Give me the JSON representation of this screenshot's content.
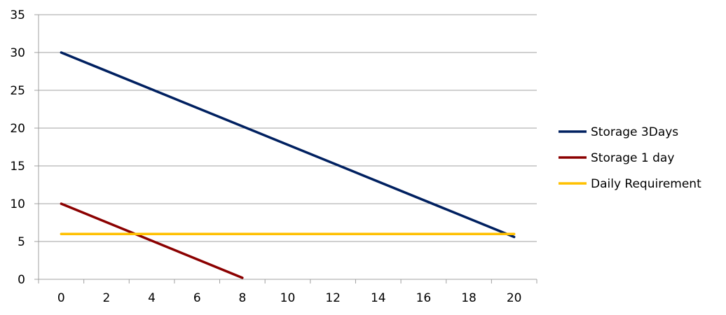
{
  "chart_data": {
    "type": "line",
    "title": "",
    "xlabel": "",
    "ylabel": "",
    "xlim": [
      -1,
      21
    ],
    "ylim": [
      0,
      35
    ],
    "x_ticks": [
      0,
      2,
      4,
      6,
      8,
      10,
      12,
      14,
      16,
      18,
      20
    ],
    "y_ticks": [
      0,
      5,
      10,
      15,
      20,
      25,
      30,
      35
    ],
    "grid": {
      "horizontal": true,
      "vertical": false
    },
    "legend_position": "right",
    "series": [
      {
        "name": "Storage 3Days",
        "color": "#002060",
        "points": [
          [
            0,
            30
          ],
          [
            20,
            5.6
          ]
        ]
      },
      {
        "name": "Storage 1 day",
        "color": "#8b0000",
        "points": [
          [
            0,
            10
          ],
          [
            8,
            0.2
          ]
        ]
      },
      {
        "name": "Daily Requirement",
        "color": "#ffc000",
        "points": [
          [
            0,
            6
          ],
          [
            20,
            6
          ]
        ]
      }
    ]
  }
}
